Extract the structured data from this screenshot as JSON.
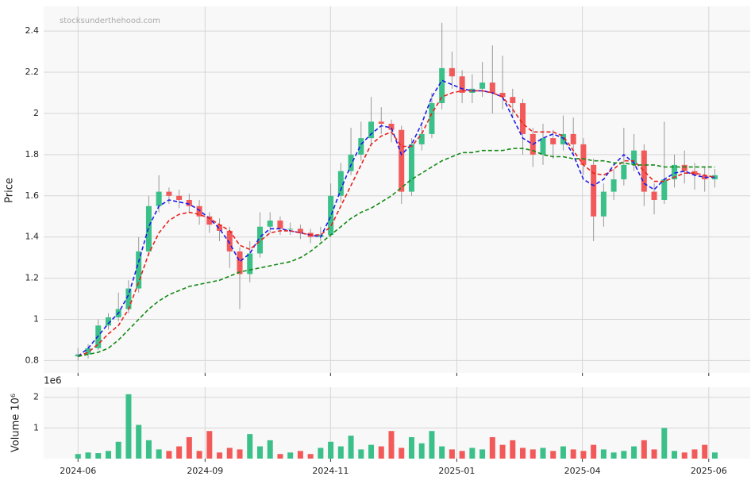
{
  "chart_data": [
    {
      "type": "candlestick",
      "ylabel": "Price",
      "watermark": "stocksunderthehood.com",
      "up_color": "#3cc08a",
      "down_color": "#f25a5a",
      "x": [
        0,
        1,
        2,
        3,
        4,
        5,
        6,
        7,
        8,
        9,
        10,
        11,
        12,
        13,
        14,
        15,
        16,
        17,
        18,
        19,
        20,
        21,
        22,
        23,
        24,
        25,
        26,
        27,
        28,
        29,
        30,
        31,
        32,
        33,
        34,
        35,
        36,
        37,
        38,
        39,
        40,
        41,
        42,
        43,
        44,
        45,
        46,
        47,
        48,
        49,
        50,
        51,
        52,
        53,
        54,
        55,
        56,
        57,
        58,
        59,
        60,
        61,
        62,
        63
      ],
      "open": [
        0.82,
        0.83,
        0.86,
        0.97,
        1.01,
        1.05,
        1.15,
        1.33,
        1.55,
        1.62,
        1.6,
        1.58,
        1.55,
        1.5,
        1.46,
        1.43,
        1.33,
        1.22,
        1.32,
        1.45,
        1.48,
        1.44,
        1.44,
        1.42,
        1.4,
        1.41,
        1.6,
        1.72,
        1.8,
        1.88,
        1.96,
        1.95,
        1.92,
        1.62,
        1.85,
        1.9,
        2.05,
        2.22,
        2.18,
        2.1,
        2.12,
        2.15,
        2.1,
        2.08,
        2.05,
        1.9,
        1.8,
        1.88,
        1.85,
        1.9,
        1.85,
        1.75,
        1.5,
        1.62,
        1.68,
        1.75,
        1.82,
        1.62,
        1.58,
        1.68,
        1.75,
        1.72,
        1.7,
        1.68
      ],
      "high": [
        0.86,
        0.88,
        1.0,
        1.03,
        1.13,
        1.19,
        1.4,
        1.6,
        1.7,
        1.64,
        1.63,
        1.61,
        1.58,
        1.52,
        1.49,
        1.45,
        1.35,
        1.38,
        1.52,
        1.52,
        1.5,
        1.47,
        1.46,
        1.44,
        1.45,
        1.66,
        1.76,
        1.93,
        1.96,
        2.08,
        2.03,
        1.97,
        1.94,
        1.88,
        1.94,
        2.1,
        2.44,
        2.3,
        2.21,
        2.19,
        2.25,
        2.33,
        2.28,
        2.12,
        2.07,
        1.93,
        1.95,
        1.92,
        1.99,
        1.98,
        1.88,
        1.78,
        1.66,
        1.73,
        1.93,
        1.9,
        1.85,
        1.66,
        1.96,
        1.8,
        1.82,
        1.76,
        1.74,
        1.73
      ],
      "low": [
        0.8,
        0.81,
        0.85,
        0.95,
        0.99,
        1.03,
        1.13,
        1.31,
        1.52,
        1.56,
        1.54,
        1.52,
        1.46,
        1.42,
        1.38,
        1.25,
        1.05,
        1.18,
        1.3,
        1.42,
        1.41,
        1.41,
        1.39,
        1.37,
        1.38,
        1.4,
        1.57,
        1.7,
        1.77,
        1.84,
        1.9,
        1.86,
        1.56,
        1.6,
        1.82,
        1.88,
        2.02,
        2.12,
        2.05,
        2.05,
        2.08,
        2.0,
        2.02,
        1.98,
        1.8,
        1.74,
        1.75,
        1.78,
        1.82,
        1.8,
        1.7,
        1.38,
        1.45,
        1.58,
        1.65,
        1.72,
        1.55,
        1.51,
        1.56,
        1.64,
        1.66,
        1.63,
        1.62,
        1.64
      ],
      "close": [
        0.83,
        0.86,
        0.97,
        1.01,
        1.05,
        1.15,
        1.33,
        1.55,
        1.62,
        1.6,
        1.58,
        1.55,
        1.5,
        1.46,
        1.43,
        1.33,
        1.22,
        1.32,
        1.45,
        1.48,
        1.44,
        1.44,
        1.42,
        1.4,
        1.41,
        1.6,
        1.72,
        1.8,
        1.88,
        1.96,
        1.95,
        1.92,
        1.62,
        1.85,
        1.9,
        2.05,
        2.22,
        2.18,
        2.1,
        2.12,
        2.15,
        2.1,
        2.08,
        2.05,
        1.9,
        1.8,
        1.88,
        1.85,
        1.9,
        1.85,
        1.75,
        1.5,
        1.62,
        1.68,
        1.75,
        1.82,
        1.62,
        1.58,
        1.68,
        1.75,
        1.72,
        1.7,
        1.68,
        1.7
      ],
      "series": [
        {
          "color": "#1a1aee",
          "values": [
            0.82,
            0.86,
            0.92,
            0.98,
            1.03,
            1.12,
            1.28,
            1.45,
            1.55,
            1.58,
            1.57,
            1.56,
            1.53,
            1.49,
            1.44,
            1.37,
            1.28,
            1.32,
            1.4,
            1.44,
            1.44,
            1.43,
            1.42,
            1.41,
            1.4,
            1.5,
            1.63,
            1.75,
            1.85,
            1.9,
            1.94,
            1.93,
            1.8,
            1.85,
            1.95,
            2.08,
            2.16,
            2.14,
            2.12,
            2.11,
            2.11,
            2.1,
            2.08,
            1.98,
            1.88,
            1.85,
            1.88,
            1.9,
            1.88,
            1.8,
            1.68,
            1.65,
            1.68,
            1.75,
            1.8,
            1.76,
            1.66,
            1.63,
            1.68,
            1.71,
            1.72,
            1.7,
            1.69,
            1.69
          ]
        },
        {
          "color": "#e8231e",
          "values": [
            0.82,
            0.84,
            0.88,
            0.93,
            0.97,
            1.05,
            1.18,
            1.32,
            1.42,
            1.48,
            1.51,
            1.52,
            1.51,
            1.49,
            1.46,
            1.43,
            1.36,
            1.34,
            1.38,
            1.42,
            1.43,
            1.43,
            1.42,
            1.41,
            1.41,
            1.45,
            1.55,
            1.65,
            1.75,
            1.85,
            1.89,
            1.91,
            1.84,
            1.84,
            1.9,
            2.0,
            2.08,
            2.1,
            2.11,
            2.11,
            2.11,
            2.1,
            2.08,
            2.02,
            1.95,
            1.91,
            1.91,
            1.91,
            1.89,
            1.82,
            1.75,
            1.71,
            1.7,
            1.73,
            1.77,
            1.77,
            1.72,
            1.67,
            1.67,
            1.69,
            1.71,
            1.71,
            1.7,
            1.69
          ]
        },
        {
          "color": "#138a13",
          "values": [
            0.82,
            0.83,
            0.84,
            0.86,
            0.9,
            0.95,
            1.0,
            1.05,
            1.09,
            1.12,
            1.14,
            1.16,
            1.17,
            1.18,
            1.19,
            1.21,
            1.23,
            1.24,
            1.25,
            1.26,
            1.27,
            1.28,
            1.3,
            1.33,
            1.37,
            1.41,
            1.45,
            1.49,
            1.52,
            1.54,
            1.57,
            1.6,
            1.64,
            1.68,
            1.71,
            1.74,
            1.77,
            1.79,
            1.81,
            1.81,
            1.82,
            1.82,
            1.82,
            1.83,
            1.83,
            1.82,
            1.8,
            1.79,
            1.79,
            1.78,
            1.78,
            1.77,
            1.77,
            1.76,
            1.76,
            1.75,
            1.75,
            1.75,
            1.74,
            1.74,
            1.74,
            1.74,
            1.74,
            1.74
          ]
        }
      ],
      "xlim": [
        -3.4,
        66.5
      ],
      "xticks": [
        {
          "value": 0,
          "label": "2024-06"
        },
        {
          "value": 12.57,
          "label": "2024-09"
        },
        {
          "value": 24.98,
          "label": "2024-11"
        },
        {
          "value": 37.47,
          "label": "2025-01"
        },
        {
          "value": 49.9,
          "label": "2025-04"
        },
        {
          "value": 62.4,
          "label": "2025-06"
        }
      ],
      "ylim": [
        0.74,
        2.52
      ],
      "yticks": [
        0.8,
        1.0,
        1.2,
        1.4,
        1.6,
        1.8,
        2.0,
        2.2,
        2.4
      ],
      "grid": true
    },
    {
      "type": "bar",
      "ylabel": "Volume 10⁶",
      "offset_label": "1e6",
      "values": [
        150000,
        200000,
        180000,
        250000,
        550000,
        2100000,
        1100000,
        600000,
        300000,
        250000,
        400000,
        700000,
        250000,
        900000,
        200000,
        350000,
        300000,
        800000,
        400000,
        600000,
        150000,
        200000,
        250000,
        150000,
        350000,
        550000,
        400000,
        750000,
        300000,
        450000,
        400000,
        900000,
        350000,
        700000,
        500000,
        900000,
        400000,
        300000,
        250000,
        350000,
        300000,
        700000,
        450000,
        600000,
        350000,
        300000,
        350000,
        250000,
        400000,
        300000,
        250000,
        450000,
        300000,
        200000,
        250000,
        400000,
        600000,
        300000,
        1000000,
        250000,
        200000,
        300000,
        450000,
        200000
      ],
      "ylim": [
        0,
        2330000
      ],
      "yticks": [
        {
          "value": 1000000,
          "label": "1"
        },
        {
          "value": 2000000,
          "label": "2"
        }
      ],
      "grid": true
    }
  ]
}
